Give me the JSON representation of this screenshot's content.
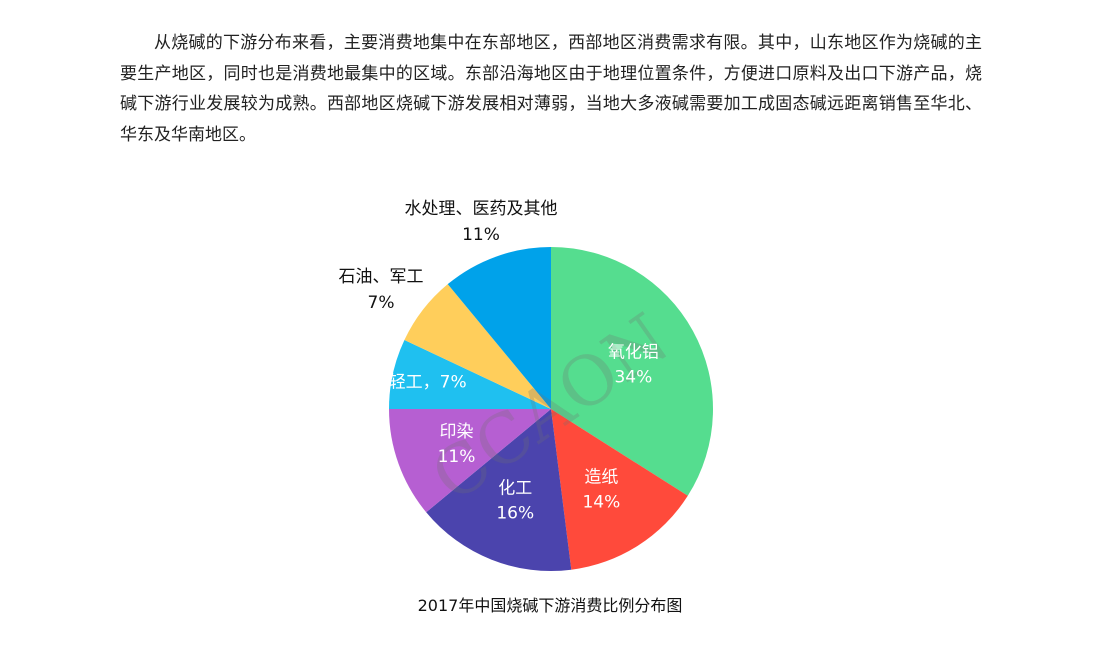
{
  "article": {
    "paragraph": "从烧碱的下游分布来看，主要消费地集中在东部地区，西部地区消费需求有限。其中，山东地区作为烧碱的主要生产地区，同时也是消费地最集中的区域。东部沿海地区由于地理位置条件，方便进口原料及出口下游产品，烧碱下游行业发展较为成熟。西部地区烧碱下游发展相对薄弱，当地大多液碱需要加工成固态碱远距离销售至华北、华东及华南地区。"
  },
  "watermark": "CCAON",
  "chart_data": {
    "type": "pie",
    "title": "2017年中国烧碱下游消费比例分布图",
    "slices": [
      {
        "label": "氧化铝",
        "value": 34,
        "percent_label": "34%",
        "color": "#55dd8f",
        "label_position": "inside"
      },
      {
        "label": "造纸",
        "value": 14,
        "percent_label": "14%",
        "color": "#ff4a3b",
        "label_position": "inside"
      },
      {
        "label": "化工",
        "value": 16,
        "percent_label": "16%",
        "color": "#4b44ad",
        "label_position": "inside"
      },
      {
        "label": "印染",
        "value": 11,
        "percent_label": "11%",
        "color": "#b65fd2",
        "label_position": "inside"
      },
      {
        "label": "轻工",
        "value": 7,
        "percent_label": "7%",
        "color": "#1fc0f0",
        "label_position": "inside",
        "label_separator": "，"
      },
      {
        "label": "石油、军工",
        "value": 7,
        "percent_label": "7%",
        "color": "#ffce5b",
        "label_position": "outside"
      },
      {
        "label": "水处理、医药及其他",
        "value": 11,
        "percent_label": "11%",
        "color": "#00a2ea",
        "label_position": "outside"
      }
    ],
    "start": "12 o'clock",
    "direction": "clockwise",
    "legend": "none"
  }
}
